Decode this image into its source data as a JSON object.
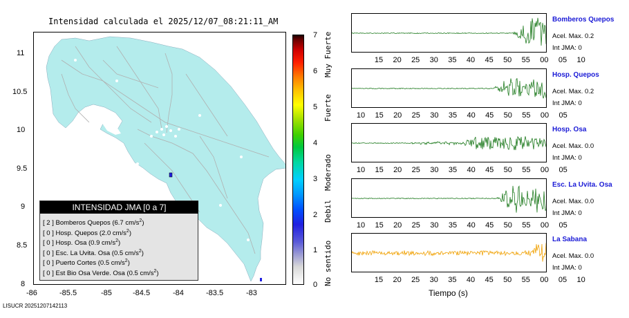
{
  "map": {
    "title": "Intensidad calculada el 2025/12/07_08:21:11_AM",
    "y_ticks": [
      "11",
      "10.5",
      "10",
      "9.5",
      "9",
      "8.5",
      "8"
    ],
    "x_ticks": [
      "-86",
      "-85.5",
      "-85",
      "-84.5",
      "-84",
      "-83.5",
      "-83"
    ],
    "land_color": "#b4ecec",
    "road_color": "#b0b0b0"
  },
  "legend": {
    "header": "INTENSIDAD JMA [0 a 7]",
    "rows": [
      {
        "level": "[ 2 ]",
        "text": "Bomberos Quepos (6.7 cm/s",
        "sup": "2",
        "end": ")"
      },
      {
        "level": "[ 0 ]",
        "text": "Hosp. Quepos (2.0 cm/s",
        "sup": "2",
        "end": ")"
      },
      {
        "level": "[ 0 ]",
        "text": "Hosp. Osa (0.9 cm/s",
        "sup": "2",
        "end": ")"
      },
      {
        "level": "[ 0 ]",
        "text": "Esc. La Uvita. Osa (0.5 cm/s",
        "sup": "2",
        "end": ")"
      },
      {
        "level": "[ 0 ]",
        "text": "Puerto Cortes (0.5 cm/s",
        "sup": "2",
        "end": ")"
      },
      {
        "level": "[ 0 ]",
        "text": "Est Bio Osa Verde. Osa (0.5 cm/s",
        "sup": "2",
        "end": ")"
      }
    ]
  },
  "colorbar": {
    "numbers": [
      "7",
      "6",
      "5",
      "4",
      "3",
      "2",
      "1",
      "0"
    ],
    "words": [
      "Muy Fuerte",
      "Fuerte",
      "Moderado",
      "Debil",
      "No sentido"
    ]
  },
  "stations": [
    {
      "name": "Bomberos Quepos",
      "accel": "Acel. Max. 0.2",
      "int": "Int JMA: 0",
      "ticks": [
        "15",
        "20",
        "25",
        "30",
        "35",
        "40",
        "45",
        "50",
        "55",
        "00",
        "05",
        "10"
      ],
      "color": "#1e7a1e"
    },
    {
      "name": "Hosp. Quepos",
      "accel": "Acel. Max. 0.2",
      "int": "Int JMA: 0",
      "ticks": [
        "10",
        "15",
        "20",
        "25",
        "30",
        "35",
        "40",
        "45",
        "50",
        "55",
        "00",
        "05"
      ],
      "color": "#1e7a1e"
    },
    {
      "name": "Hosp. Osa",
      "accel": "Acel. Max. 0.0",
      "int": "Int JMA: 0",
      "ticks": [
        "10",
        "15",
        "20",
        "25",
        "30",
        "35",
        "40",
        "45",
        "50",
        "55",
        "00",
        "05"
      ],
      "color": "#1e7a1e"
    },
    {
      "name": "Esc. La Uvita. Osa",
      "accel": "Acel. Max. 0.0",
      "int": "Int JMA: 0",
      "ticks": [
        "10",
        "15",
        "20",
        "25",
        "30",
        "35",
        "40",
        "45",
        "50",
        "55",
        "00",
        "05"
      ],
      "color": "#1e7a1e"
    },
    {
      "name": "La Sabana",
      "accel": "Acel. Max. 0.0",
      "int": "Int JMA: 0",
      "ticks": [
        "15",
        "20",
        "25",
        "30",
        "35",
        "40",
        "45",
        "50",
        "55",
        "00",
        "05",
        "10"
      ],
      "color": "#f0a000"
    }
  ],
  "time_axis_label": "Tiempo (s)",
  "footer_id": "LISUCR 20251207142113"
}
